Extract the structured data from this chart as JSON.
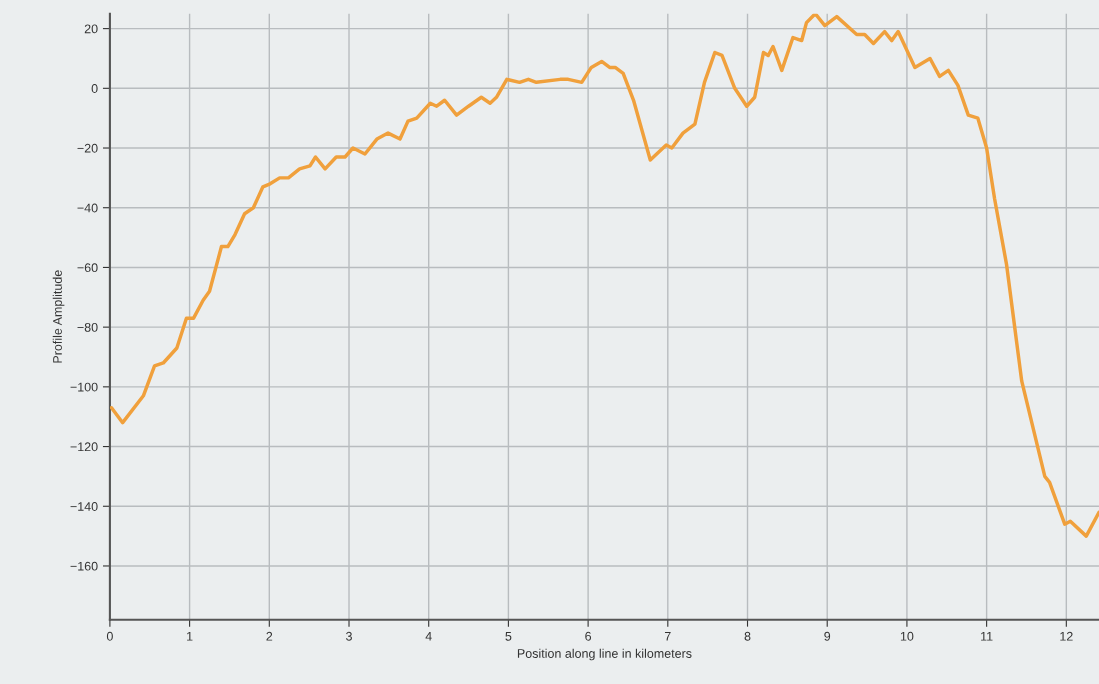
{
  "chart_data": {
    "type": "line",
    "xlabel": "Position along line in kilometers",
    "ylabel": "Profile Amplitude",
    "xlim": [
      0,
      12.41
    ],
    "ylim": [
      -178,
      25
    ],
    "xticks": [
      0,
      1,
      2,
      3,
      4,
      5,
      6,
      7,
      8,
      9,
      10,
      11,
      12
    ],
    "yticks": [
      -160,
      -140,
      -120,
      -100,
      -80,
      -60,
      -40,
      -20,
      0,
      20
    ],
    "grid": true,
    "marker": "none",
    "line_style": "solid",
    "series": [
      {
        "color": "#f0a03c",
        "x": [
          0.02,
          0.16,
          0.42,
          0.56,
          0.67,
          0.84,
          0.96,
          1.05,
          1.17,
          1.25,
          1.4,
          1.48,
          1.57,
          1.69,
          1.8,
          1.92,
          2.01,
          2.13,
          2.24,
          2.38,
          2.51,
          2.58,
          2.7,
          2.84,
          2.95,
          3.05,
          3.2,
          3.35,
          3.49,
          3.64,
          3.74,
          3.85,
          4.02,
          4.1,
          4.2,
          4.35,
          4.5,
          4.66,
          4.77,
          4.85,
          4.98,
          5.14,
          5.25,
          5.35,
          5.65,
          5.75,
          5.92,
          6.04,
          6.17,
          6.27,
          6.34,
          6.44,
          6.57,
          6.78,
          6.98,
          7.05,
          7.19,
          7.34,
          7.46,
          7.59,
          7.68,
          7.84,
          7.99,
          8.09,
          8.2,
          8.26,
          8.32,
          8.43,
          8.57,
          8.68,
          8.74,
          8.85,
          8.97,
          9.12,
          9.37,
          9.47,
          9.58,
          9.72,
          9.81,
          9.89,
          10.1,
          10.29,
          10.41,
          10.52,
          10.64,
          10.77,
          10.89,
          11.0,
          11.1,
          11.25,
          11.44,
          11.73,
          11.79,
          11.98,
          12.05,
          12.25,
          12.41
        ],
        "values": [
          -107,
          -112,
          -103,
          -93,
          -92,
          -87,
          -77,
          -77,
          -71,
          -68,
          -53,
          -53,
          -49,
          -42,
          -40,
          -33,
          -32,
          -30,
          -30,
          -27,
          -26,
          -23,
          -27,
          -23,
          -23,
          -20,
          -22,
          -17,
          -15,
          -17,
          -11,
          -10,
          -5,
          -6,
          -4,
          -9,
          -6,
          -3,
          -5,
          -3,
          3,
          2,
          3,
          2,
          3,
          3,
          2,
          7,
          9,
          7,
          7,
          5,
          -4,
          -24,
          -19,
          -20,
          -15,
          -12,
          2,
          12,
          11,
          0,
          -6,
          -3,
          12,
          11,
          14,
          6,
          17,
          16,
          22,
          25,
          21,
          24,
          18,
          18,
          15,
          19,
          16,
          19,
          7,
          10,
          4,
          6,
          1,
          -9,
          -10,
          -20,
          -37,
          -59,
          -98,
          -130,
          -132,
          -146,
          -145,
          -150,
          -142
        ]
      }
    ]
  }
}
